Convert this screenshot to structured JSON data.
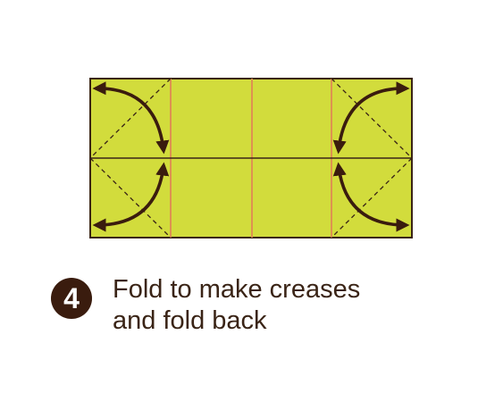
{
  "colors": {
    "paper": "#d2dc3c",
    "outline": "#3a2416",
    "crease_valley": "#e08a52",
    "crease_dashed": "#3a2416",
    "arrow": "#3a1c0e",
    "badge": "#3a1c0e",
    "text": "#3a2416"
  },
  "step": {
    "number": "4"
  },
  "instruction": {
    "line1": "Fold to make creases",
    "line2": "and fold back"
  },
  "icons": {
    "fold_arrow": "curved-double-arrow-icon"
  }
}
